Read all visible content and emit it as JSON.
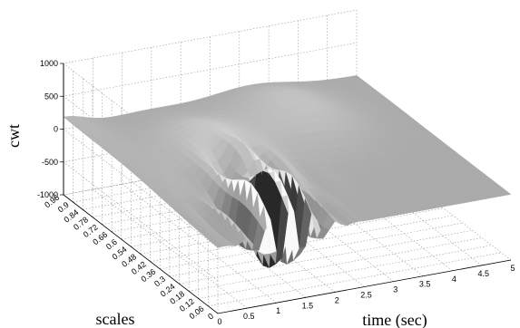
{
  "chart_data": {
    "type": "surface",
    "title": "",
    "xlabel": "time (sec)",
    "ylabel": "scales",
    "zlabel": "cwt",
    "xlim": [
      0,
      5
    ],
    "ylim": [
      0,
      0.96
    ],
    "zlim": [
      -1000,
      1000
    ],
    "x_ticks": [
      "0",
      "0.5",
      "1",
      "1.5",
      "2",
      "2.5",
      "3",
      "3.5",
      "4",
      "4.5",
      "5"
    ],
    "y_ticks": [
      "0",
      "0.06",
      "0.12",
      "0.18",
      "0.24",
      "0.3",
      "0.36",
      "0.42",
      "0.48",
      "0.54",
      "0.6",
      "0.66",
      "0.72",
      "0.78",
      "0.84",
      "0.9",
      "0.96"
    ],
    "z_ticks": [
      "-1000",
      "-500",
      "0",
      "500",
      "1000"
    ],
    "grid": true,
    "colormap": "gray",
    "surface_note": "Continuous wavelet transform coefficients: large oscillations (about ±1000) for 0.5–2 s at small scales; smoother ridges up to ~700 at larger scales; flat near 0 outside."
  }
}
